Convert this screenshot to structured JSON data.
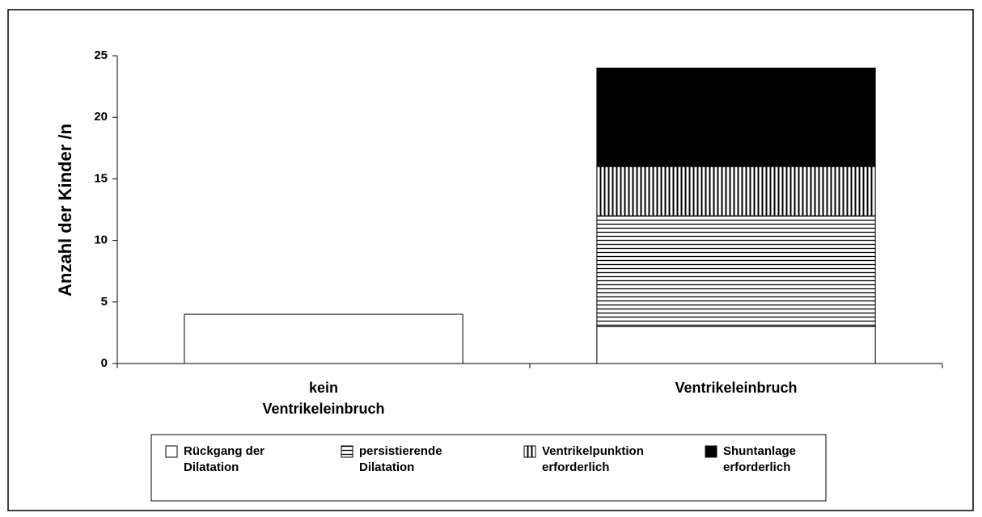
{
  "chart_data": {
    "type": "stacked_bar",
    "ylabel": "Anzahl der Kinder /n",
    "categories": [
      "kein Ventrikeleinbruch",
      "Ventrikeleinbruch"
    ],
    "series": [
      {
        "name": "Rückgang der Dilatation",
        "color": "#ffffff",
        "pattern": "none",
        "values": [
          4,
          3
        ]
      },
      {
        "name": "persistierende Dilatation",
        "color": "#ffffff",
        "pattern": "horizontal",
        "values": [
          0,
          9
        ]
      },
      {
        "name": "Ventrikelpunktion erforderlich",
        "color": "#ffffff",
        "pattern": "vertical",
        "values": [
          0,
          4
        ]
      },
      {
        "name": "Shuntanlage erforderlich",
        "color": "#000000",
        "pattern": "none",
        "values": [
          0,
          8
        ]
      }
    ],
    "ylim": [
      0,
      25
    ],
    "yticks": [
      0,
      5,
      10,
      15,
      20,
      25
    ],
    "grid": false,
    "legend": "bottom"
  }
}
